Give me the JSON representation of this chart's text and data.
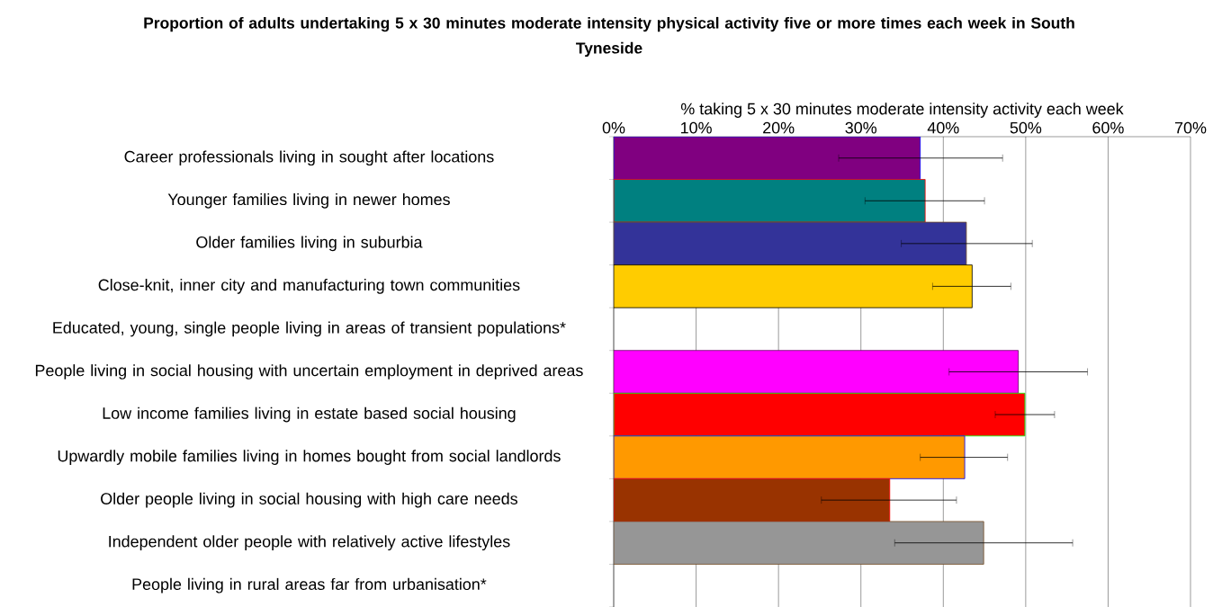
{
  "chart_data": {
    "type": "bar",
    "orientation": "horizontal",
    "title": "Proportion of adults undertaking 5 x 30 minutes moderate intensity physical activity five or more times each week in South Tyneside",
    "xlabel": "% taking 5 x 30 minutes moderate intensity activity each week",
    "categories": [
      "Career professionals living in sought after locations",
      "Younger families living in newer homes",
      "Older families living in suburbia",
      "Close-knit, inner city and manufacturing town communities",
      "Educated, young, single people living in areas of transient populations*",
      "People living in social housing with uncertain employment in deprived areas",
      "Low income families living in estate based social housing",
      "Upwardly mobile families living in homes bought from social landlords",
      "Older people living in social housing with high care needs",
      "Independent older people with relatively active lifestyles",
      "People living in rural areas far from urbanisation*"
    ],
    "values": [
      37.2,
      37.8,
      42.8,
      43.5,
      null,
      49.1,
      49.9,
      42.6,
      33.5,
      44.9,
      null
    ],
    "errors": [
      [
        27.3,
        47.2
      ],
      [
        30.5,
        45.0
      ],
      [
        34.9,
        50.8
      ],
      [
        38.7,
        48.2
      ],
      null,
      [
        40.7,
        57.5
      ],
      [
        46.3,
        53.5
      ],
      [
        37.2,
        47.8
      ],
      [
        25.2,
        41.6
      ],
      [
        34.1,
        55.7
      ],
      null
    ],
    "colors": [
      "#800080",
      "#008080",
      "#333399",
      "#ffcc00",
      "#ffffff",
      "#ff00ff",
      "#ff0000",
      "#ff9900",
      "#993300",
      "#969696",
      "#ffffff"
    ],
    "xlim": [
      0,
      70
    ],
    "xticks": [
      {
        "value": 0,
        "label": "0%"
      },
      {
        "value": 10,
        "label": "10%"
      },
      {
        "value": 20,
        "label": "20%"
      },
      {
        "value": 30,
        "label": "30%"
      },
      {
        "value": 40,
        "label": "40%"
      },
      {
        "value": 50,
        "label": "50%"
      },
      {
        "value": 60,
        "label": "60%"
      },
      {
        "value": 70,
        "label": "70%"
      }
    ],
    "grid": "x"
  }
}
